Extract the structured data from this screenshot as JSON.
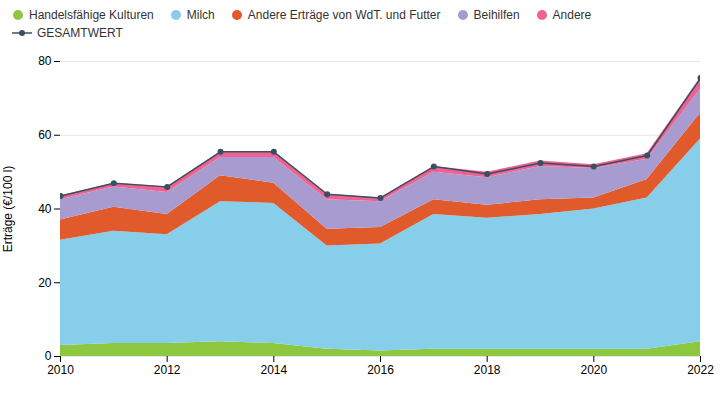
{
  "chart_data": {
    "type": "area",
    "stacked": true,
    "ylabel": "Erträge (€/100 l)",
    "x": [
      2010,
      2011,
      2012,
      2013,
      2014,
      2015,
      2016,
      2017,
      2018,
      2019,
      2020,
      2021,
      2022
    ],
    "xlim": [
      2010,
      2022
    ],
    "xticks": [
      2010,
      2012,
      2014,
      2016,
      2018,
      2020,
      2022
    ],
    "ylim": [
      0,
      80
    ],
    "yticks": [
      0,
      20,
      40,
      60,
      80
    ],
    "grid": "y",
    "legend": "top",
    "series": [
      {
        "name": "Handelsfähige Kulturen",
        "color": "#8dc63f",
        "values": [
          3.0,
          3.5,
          3.5,
          4.0,
          3.5,
          2.0,
          1.5,
          2.0,
          2.0,
          2.0,
          2.0,
          2.0,
          4.0
        ]
      },
      {
        "name": "Milch",
        "color": "#87ceeb",
        "values": [
          28.5,
          30.5,
          29.5,
          38.0,
          38.0,
          28.0,
          29.0,
          36.5,
          35.5,
          36.5,
          38.0,
          41.0,
          55.0
        ]
      },
      {
        "name": "Andere Erträge von WdT. und Futter",
        "color": "#e05a2b",
        "values": [
          5.5,
          6.5,
          5.5,
          7.0,
          5.5,
          4.5,
          4.5,
          4.0,
          3.5,
          4.0,
          3.0,
          5.0,
          7.0
        ]
      },
      {
        "name": "Beihilfen",
        "color": "#a89bd0",
        "values": [
          5.5,
          5.5,
          6.0,
          5.0,
          7.0,
          8.0,
          7.0,
          7.5,
          7.5,
          9.0,
          8.0,
          5.5,
          6.5
        ]
      },
      {
        "name": "Andere",
        "color": "#f06292",
        "values": [
          1.0,
          1.0,
          1.5,
          1.5,
          1.5,
          1.5,
          1.0,
          1.5,
          1.5,
          1.5,
          1.0,
          1.5,
          3.0
        ]
      },
      {
        "name": "GESAMTWERT",
        "color": "#3a5060",
        "type": "line",
        "marker": "circle",
        "values": [
          43.5,
          47.0,
          46.0,
          55.5,
          55.5,
          44.0,
          43.0,
          51.5,
          49.5,
          52.5,
          51.5,
          54.5,
          75.5
        ]
      }
    ]
  }
}
